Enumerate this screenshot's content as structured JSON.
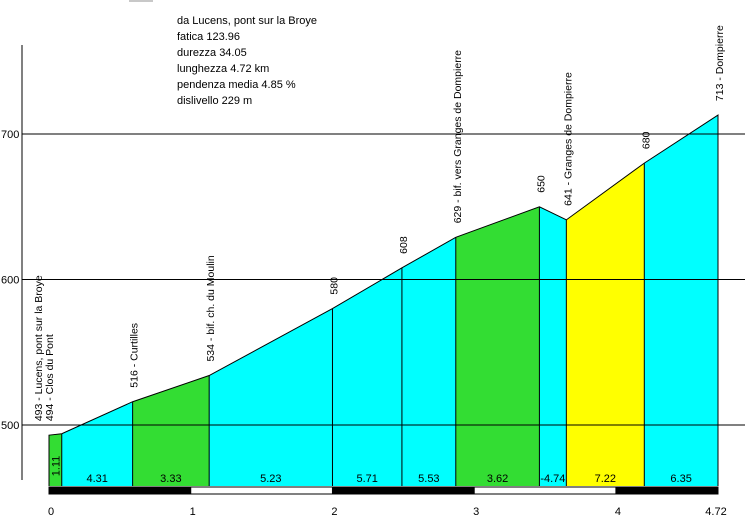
{
  "info": {
    "lines": [
      "da Lucens, pont sur la Broye",
      "fatica 123.96",
      "durezza 34.05",
      "lunghezza 4.72 km",
      "pendenza media 4.85 %",
      "dislivello 229 m"
    ]
  },
  "chart_data": {
    "type": "area",
    "title": "",
    "xlabel": "",
    "ylabel": "",
    "xlim": [
      0,
      4.72
    ],
    "ylim": [
      460,
      720
    ],
    "grid": true,
    "y_ticks": [
      500,
      600,
      700
    ],
    "y_tick_labels": [
      "500",
      "600",
      "700"
    ],
    "x_ticks": [
      0,
      1,
      2,
      3,
      4,
      4.72
    ],
    "x_tick_labels": [
      "0",
      "1",
      "2",
      "3",
      "4",
      "4.72"
    ],
    "profile": [
      {
        "x": 0.0,
        "y": 493
      },
      {
        "x": 0.09,
        "y": 494
      },
      {
        "x": 0.59,
        "y": 516
      },
      {
        "x": 1.13,
        "y": 534
      },
      {
        "x": 2.0,
        "y": 580
      },
      {
        "x": 2.49,
        "y": 608
      },
      {
        "x": 2.87,
        "y": 629
      },
      {
        "x": 3.46,
        "y": 650
      },
      {
        "x": 3.65,
        "y": 641
      },
      {
        "x": 4.2,
        "y": 680
      },
      {
        "x": 4.72,
        "y": 713
      }
    ],
    "segments": [
      {
        "x0": 0.0,
        "x1": 0.09,
        "grade": "1.11",
        "color": "#33dd33"
      },
      {
        "x0": 0.09,
        "x1": 0.59,
        "grade": "4.31",
        "color": "#00ffff"
      },
      {
        "x0": 0.59,
        "x1": 1.13,
        "grade": "3.33",
        "color": "#33dd33"
      },
      {
        "x0": 1.13,
        "x1": 2.0,
        "grade": "5.23",
        "color": "#00ffff"
      },
      {
        "x0": 2.0,
        "x1": 2.49,
        "grade": "5.71",
        "color": "#00ffff"
      },
      {
        "x0": 2.49,
        "x1": 2.87,
        "grade": "5.53",
        "color": "#00ffff"
      },
      {
        "x0": 2.87,
        "x1": 3.46,
        "grade": "3.62",
        "color": "#33dd33"
      },
      {
        "x0": 3.46,
        "x1": 3.65,
        "grade": "-4.74",
        "color": "#00ffff"
      },
      {
        "x0": 3.65,
        "x1": 4.2,
        "grade": "7.22",
        "color": "#ffff00"
      },
      {
        "x0": 4.2,
        "x1": 4.72,
        "grade": "6.35",
        "color": "#00ffff"
      }
    ],
    "point_labels": [
      {
        "x": 0.0,
        "y": 493,
        "lines": [
          "493 - Lucens, pont sur la Broye",
          "494 - Clos du Pont"
        ]
      },
      {
        "x": 0.59,
        "y": 516,
        "lines": [
          "516 - Curtilles"
        ]
      },
      {
        "x": 1.13,
        "y": 534,
        "lines": [
          "534 - bif. ch. du Moulin"
        ]
      },
      {
        "x": 2.0,
        "y": 580,
        "lines": [
          "580"
        ]
      },
      {
        "x": 2.49,
        "y": 608,
        "lines": [
          "608"
        ]
      },
      {
        "x": 2.87,
        "y": 629,
        "lines": [
          "629 - bif. vers Granges de Dompierre"
        ]
      },
      {
        "x": 3.46,
        "y": 650,
        "lines": [
          "650"
        ]
      },
      {
        "x": 3.65,
        "y": 641,
        "lines": [
          "641 - Granges de Dompierre"
        ]
      },
      {
        "x": 4.2,
        "y": 680,
        "lines": [
          "680"
        ]
      },
      {
        "x": 4.72,
        "y": 713,
        "lines": [
          "713 - Dompierre"
        ]
      }
    ],
    "colors": {
      "green": "#33dd33",
      "cyan": "#00ffff",
      "yellow": "#ffff00",
      "outline": "#000000",
      "grid": "#000000"
    }
  }
}
